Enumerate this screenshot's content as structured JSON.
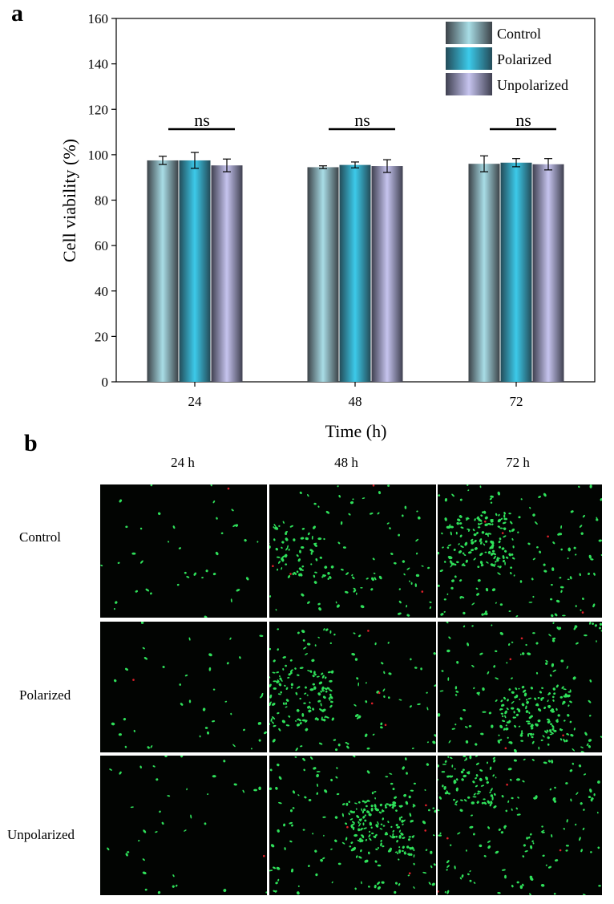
{
  "panel_a_label": "a",
  "panel_b_label": "b",
  "chart_data": {
    "type": "bar",
    "xlabel": "Time (h)",
    "ylabel": "Cell viability (%)",
    "ylim": [
      0,
      160
    ],
    "yticks": [
      0,
      20,
      40,
      60,
      80,
      100,
      120,
      140,
      160
    ],
    "categories": [
      "24",
      "48",
      "72"
    ],
    "series": [
      {
        "name": "Control",
        "values": [
          97.5,
          94.5,
          96
        ],
        "errors": [
          1.8,
          0.6,
          3.5
        ],
        "colors": [
          "#3c4248",
          "#a8dde6"
        ]
      },
      {
        "name": "Polarized",
        "values": [
          97.5,
          95.5,
          96.5
        ],
        "errors": [
          3.5,
          1.3,
          1.8
        ],
        "colors": [
          "#234b58",
          "#3ccaea"
        ]
      },
      {
        "name": "Unpolarized",
        "values": [
          95.3,
          95,
          95.8
        ],
        "errors": [
          2.8,
          2.8,
          2.5
        ],
        "colors": [
          "#3f4050",
          "#c6c4ef"
        ]
      }
    ],
    "significance": [
      {
        "category": "24",
        "label": "ns"
      },
      {
        "category": "48",
        "label": "ns"
      },
      {
        "category": "72",
        "label": "ns"
      }
    ],
    "legend_position": "top-right",
    "grid": false
  },
  "micrographs": {
    "columns": [
      "24 h",
      "48 h",
      "72 h"
    ],
    "rows": [
      "Control",
      "Polarized",
      "Unpolarized"
    ],
    "colors": {
      "live": "#2fe05a",
      "dead": "#e0202a",
      "background": "#020402"
    }
  }
}
